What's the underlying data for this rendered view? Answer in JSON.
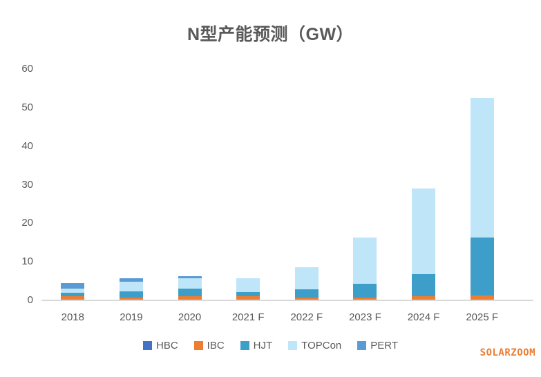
{
  "title": "N型产能预测（GW）",
  "watermark": "SOLARZOOM",
  "style": {
    "text_color": "#595959",
    "axis_line_color": "#D9D9D9",
    "watermark_color": "#ED7D31"
  },
  "chart_data": {
    "type": "bar",
    "stacked": true,
    "title": "N型产能预测（GW）",
    "xlabel": "",
    "ylabel": "",
    "categories": [
      "2018",
      "2019",
      "2020",
      "2021 F",
      "2022 F",
      "2023 F",
      "2024 F",
      "2025 F"
    ],
    "series": [
      {
        "name": "HBC",
        "color": "#4472C4",
        "values": [
          0,
          0,
          0,
          0,
          0,
          0,
          0,
          0
        ]
      },
      {
        "name": "IBC",
        "color": "#ED7D31",
        "values": [
          1,
          0.75,
          1,
          1,
          0.7,
          0.8,
          1.1,
          1.2
        ]
      },
      {
        "name": "HJT",
        "color": "#3D9FC9",
        "values": [
          1,
          1.5,
          2,
          1.2,
          2.2,
          3.5,
          5.7,
          15.1
        ]
      },
      {
        "name": "TOPCon",
        "color": "#BEE5F8",
        "values": [
          1,
          2.5,
          2.8,
          3.5,
          5.7,
          12,
          22.3,
          36.2
        ]
      },
      {
        "name": "PERT",
        "color": "#5B9BD5",
        "values": [
          1.5,
          1,
          0.5,
          0,
          0,
          0,
          0,
          0
        ]
      }
    ],
    "totals": [
      4.5,
      5.75,
      6.3,
      5.7,
      8.6,
      16.3,
      29.1,
      52.5
    ],
    "ylim": [
      0,
      60
    ],
    "yticks": [
      0,
      10,
      20,
      30,
      40,
      50,
      60
    ],
    "gridlines": false,
    "legend_position": "bottom"
  }
}
